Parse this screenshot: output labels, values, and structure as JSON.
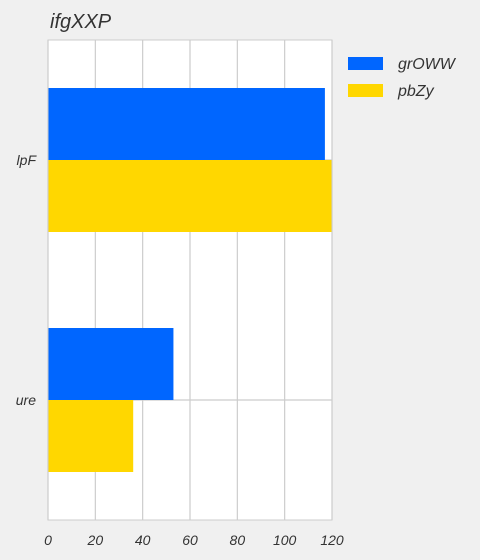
{
  "chart_data": {
    "type": "bar",
    "orientation": "horizontal",
    "title": "ifgXXP",
    "xlabel": "",
    "ylabel": "",
    "categories": [
      "lpF",
      "ure"
    ],
    "series": [
      {
        "name": "grOWW",
        "values": [
          117,
          53
        ],
        "color": "#0066ff"
      },
      {
        "name": "pbZy",
        "values": [
          120,
          36
        ],
        "color": "#ffd700"
      }
    ],
    "xlim": [
      0,
      120
    ],
    "xticks": [
      "0",
      "20",
      "40",
      "60",
      "80",
      "100",
      "120"
    ],
    "grid": true,
    "legend_position": "outside-top-right"
  }
}
